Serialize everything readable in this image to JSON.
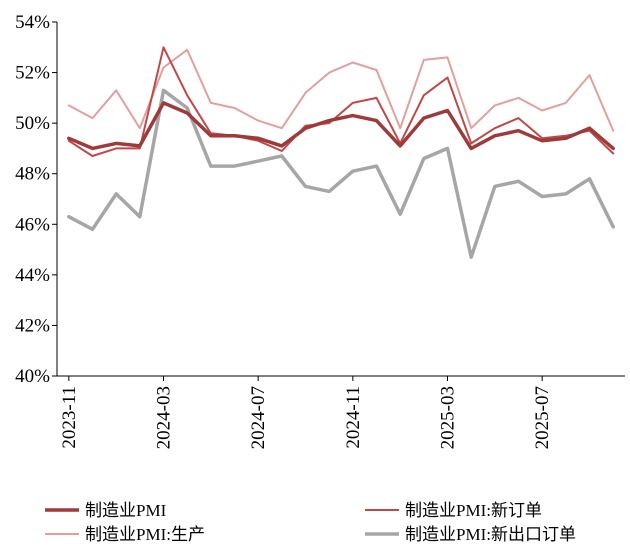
{
  "chart_data": {
    "type": "line",
    "title": "",
    "xlabel": "",
    "ylabel": "",
    "ylim": [
      40,
      54
    ],
    "y_ticks": [
      40,
      42,
      44,
      46,
      48,
      50,
      52,
      54
    ],
    "y_tick_format": "percent",
    "grid": false,
    "legend_position": "bottom",
    "x": [
      "2023-11",
      "2023-12",
      "2024-01",
      "2024-02",
      "2024-03",
      "2024-04",
      "2024-05",
      "2024-06",
      "2024-07",
      "2024-08",
      "2024-09",
      "2024-10",
      "2024-11",
      "2024-12",
      "2025-01",
      "2025-02",
      "2025-03",
      "2025-04",
      "2025-05",
      "2025-06",
      "2025-07",
      "2025-08",
      "2025-09",
      "2025-10"
    ],
    "x_tick_labels": [
      "2023-11",
      "2024-03",
      "2024-07",
      "2024-11",
      "2025-03",
      "2025-07"
    ],
    "series": [
      {
        "name": "制造业PMI",
        "color": "#9e3a3a",
        "width": 3.5,
        "values": [
          49.4,
          49.0,
          49.2,
          49.1,
          50.8,
          50.4,
          49.5,
          49.5,
          49.4,
          49.1,
          49.8,
          50.1,
          50.3,
          50.1,
          49.1,
          50.2,
          50.5,
          49.0,
          49.5,
          49.7,
          49.3,
          49.4,
          49.8,
          49.0
        ]
      },
      {
        "name": "制造业PMI:新订单",
        "color": "#c04848",
        "width": 2,
        "values": [
          49.3,
          48.7,
          49.0,
          49.0,
          53.0,
          51.1,
          49.6,
          49.5,
          49.3,
          48.9,
          49.9,
          50.0,
          50.8,
          51.0,
          49.2,
          51.1,
          51.8,
          49.2,
          49.8,
          50.2,
          49.4,
          49.5,
          49.7,
          48.8
        ]
      },
      {
        "name": "制造业PMI:生产",
        "color": "#e0a0a0",
        "width": 2,
        "values": [
          50.7,
          50.2,
          51.3,
          49.8,
          52.2,
          52.9,
          50.8,
          50.6,
          50.1,
          49.8,
          51.2,
          52.0,
          52.4,
          52.1,
          49.8,
          52.5,
          52.6,
          49.8,
          50.7,
          51.0,
          50.5,
          50.8,
          51.9,
          49.7
        ]
      },
      {
        "name": "制造业PMI:新出口订单",
        "color": "#a6a6a6",
        "width": 3.5,
        "values": [
          46.3,
          45.8,
          47.2,
          46.3,
          51.3,
          50.6,
          48.3,
          48.3,
          48.5,
          48.7,
          47.5,
          47.3,
          48.1,
          48.3,
          46.4,
          48.6,
          49.0,
          44.7,
          47.5,
          47.7,
          47.1,
          47.2,
          47.8,
          45.9
        ]
      }
    ]
  }
}
